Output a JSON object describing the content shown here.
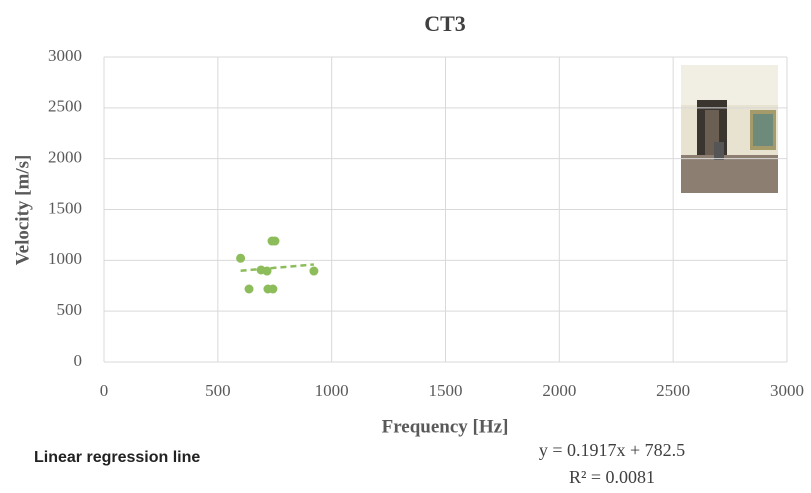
{
  "chart_data": {
    "type": "scatter",
    "title": "CT3",
    "x_label": "Frequency [Hz]",
    "y_label": "Velocity [m/s]",
    "x": [
      600,
      637,
      690,
      716,
      720,
      738,
      751,
      742,
      922
    ],
    "values": [
      1020,
      718,
      905,
      895,
      718,
      1190,
      1190,
      718,
      895
    ],
    "color": "#8dbd5a",
    "xlim": [
      0,
      3000
    ],
    "xticks": [
      0,
      500,
      1000,
      1500,
      2000,
      2500,
      3000
    ],
    "ylim": [
      0,
      3000
    ],
    "yticks": [
      0,
      500,
      1000,
      1500,
      2000,
      2500,
      3000
    ],
    "grid": true,
    "trendline": {
      "name": "Linear regression line",
      "equation": "y = 0.1917x + 782.5",
      "r2": "R² = 0.0081",
      "slope": 0.1917,
      "intercept": 782.5
    }
  }
}
